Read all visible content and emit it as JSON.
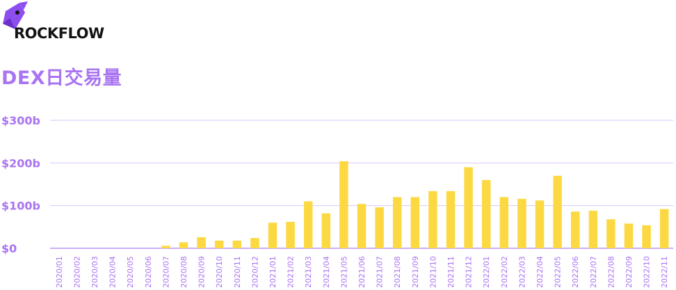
{
  "brand": {
    "name": "ROCKFLOW",
    "logo_icon": "unicorn-icon",
    "logo_color": "#8d4ef0"
  },
  "colors": {
    "accent": "#a974f2",
    "bar": "#fcd943",
    "grid": "#d9c5fb",
    "text": "#141414"
  },
  "chart_data": {
    "type": "bar",
    "title": "DEX日交易量",
    "xlabel": "",
    "ylabel": "",
    "ylim": [
      0,
      300
    ],
    "yticks": [
      0,
      100,
      200,
      300
    ],
    "ytick_labels": [
      "$0",
      "$100b",
      "$200b",
      "$300b"
    ],
    "grid": true,
    "legend": "none",
    "categories": [
      "2020/01",
      "2020/02",
      "2020/03",
      "2020/04",
      "2020/05",
      "2020/06",
      "2020/07",
      "2020/08",
      "2020/09",
      "2020/10",
      "2020/11",
      "2020/12",
      "2021/01",
      "2021/02",
      "2021/03",
      "2021/04",
      "2021/05",
      "2021/06",
      "2021/07",
      "2021/08",
      "2021/09",
      "2021/10",
      "2021/11",
      "2021/12",
      "2022/01",
      "2022/02",
      "2022/03",
      "2022/04",
      "2022/05",
      "2022/06",
      "2022/07",
      "2022/08",
      "2022/09",
      "2022/10",
      "2022/11"
    ],
    "values": [
      0,
      0,
      0,
      0,
      0,
      0,
      6,
      14,
      26,
      18,
      18,
      24,
      60,
      62,
      110,
      82,
      204,
      104,
      96,
      120,
      120,
      134,
      134,
      190,
      160,
      120,
      116,
      112,
      170,
      86,
      88,
      68,
      58,
      54,
      92
    ]
  }
}
